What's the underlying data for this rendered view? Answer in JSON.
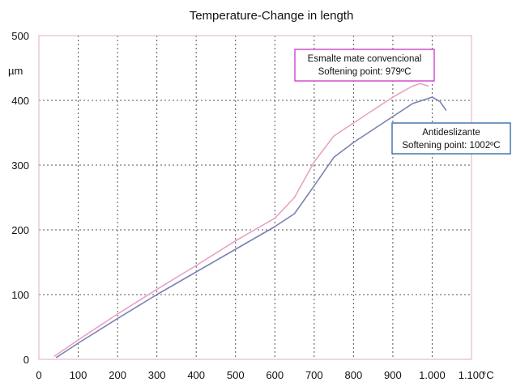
{
  "chart_data": {
    "type": "line",
    "title": "Temperature-Change in length",
    "ylabel": "µm",
    "xlabel": "°C",
    "xlim": [
      0,
      1100
    ],
    "ylim": [
      0,
      500
    ],
    "xticks": [
      {
        "value": 0,
        "label": "0"
      },
      {
        "value": 100,
        "label": "100"
      },
      {
        "value": 200,
        "label": "200"
      },
      {
        "value": 300,
        "label": "300"
      },
      {
        "value": 400,
        "label": "400"
      },
      {
        "value": 500,
        "label": "500"
      },
      {
        "value": 600,
        "label": "600"
      },
      {
        "value": 700,
        "label": "700"
      },
      {
        "value": 800,
        "label": "800"
      },
      {
        "value": 900,
        "label": "900"
      },
      {
        "value": 1000,
        "label": "1.000"
      },
      {
        "value": 1100,
        "label": "1.100"
      }
    ],
    "yticks": [
      {
        "value": 0,
        "label": "0"
      },
      {
        "value": 100,
        "label": "100"
      },
      {
        "value": 200,
        "label": "200"
      },
      {
        "value": 300,
        "label": "300"
      },
      {
        "value": 400,
        "label": "400"
      },
      {
        "value": 500,
        "label": "500"
      }
    ],
    "grid": true,
    "series": [
      {
        "name": "Esmalte mate convencional",
        "color": "#e6a3c4",
        "x": [
          40,
          100,
          200,
          300,
          400,
          500,
          600,
          650,
          700,
          750,
          800,
          850,
          900,
          950,
          970,
          990
        ],
        "y": [
          5,
          30,
          70,
          108,
          145,
          183,
          218,
          250,
          305,
          345,
          365,
          385,
          405,
          422,
          426,
          422
        ]
      },
      {
        "name": "Antideslizante",
        "color": "#7b82b2",
        "x": [
          45,
          100,
          200,
          300,
          400,
          500,
          600,
          650,
          700,
          750,
          800,
          850,
          900,
          950,
          1000,
          1020,
          1035
        ],
        "y": [
          3,
          25,
          63,
          100,
          135,
          170,
          205,
          225,
          268,
          312,
          335,
          355,
          375,
          395,
          405,
          398,
          385
        ]
      }
    ],
    "annotations": [
      {
        "line1": "Esmalte mate convencional",
        "line2": "Softening point: 979ºC",
        "border": "#cc44cc"
      },
      {
        "line1": "Antideslizante",
        "line2": "Softening point: 1002ºC",
        "border": "#3a6ea5"
      }
    ]
  }
}
